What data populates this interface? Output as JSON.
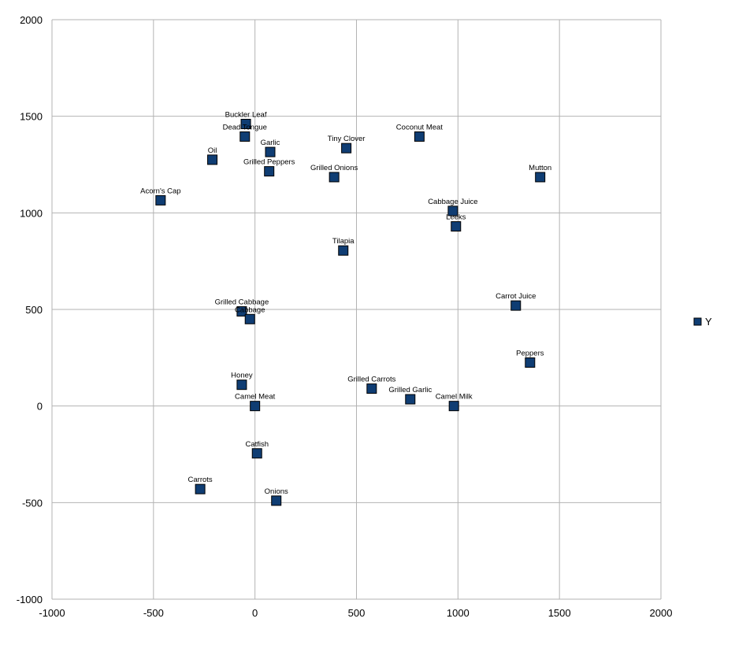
{
  "chart_data": {
    "type": "scatter",
    "title": "",
    "xlabel": "",
    "ylabel": "",
    "xlim": [
      -1000,
      2000
    ],
    "ylim": [
      -1000,
      2000
    ],
    "x_ticks": [
      -1000,
      -500,
      0,
      500,
      1000,
      1500,
      2000
    ],
    "y_ticks": [
      -1000,
      -500,
      0,
      500,
      1000,
      1500,
      2000
    ],
    "x_tick_labels": [
      "-1000",
      "-500",
      "0",
      "500",
      "1000",
      "1500",
      "2000"
    ],
    "y_tick_labels": [
      "-1000",
      "-500",
      "0",
      "500",
      "1000",
      "1500",
      "2000"
    ],
    "grid": true,
    "legend_position": "right",
    "series": [
      {
        "name": "Y",
        "color": "#0f3d73",
        "points": [
          {
            "label": "Buckler Leaf",
            "x": -45,
            "y": 1460
          },
          {
            "label": "Dead Tongue",
            "x": -50,
            "y": 1395
          },
          {
            "label": "Garlic",
            "x": 75,
            "y": 1315
          },
          {
            "label": "Oil",
            "x": -210,
            "y": 1275
          },
          {
            "label": "Grilled Peppers",
            "x": 70,
            "y": 1215
          },
          {
            "label": "Tiny Clover",
            "x": 450,
            "y": 1335
          },
          {
            "label": "Coconut Meat",
            "x": 810,
            "y": 1395
          },
          {
            "label": "Grilled Onions",
            "x": 390,
            "y": 1185
          },
          {
            "label": "Mutton",
            "x": 1405,
            "y": 1185
          },
          {
            "label": "Acorn's Cap",
            "x": -465,
            "y": 1065
          },
          {
            "label": "Cabbage Juice",
            "x": 975,
            "y": 1010
          },
          {
            "label": "Leeks",
            "x": 990,
            "y": 930
          },
          {
            "label": "Tilapia",
            "x": 435,
            "y": 805
          },
          {
            "label": "Carrot Juice",
            "x": 1285,
            "y": 520
          },
          {
            "label": "Grilled Cabbage",
            "x": -65,
            "y": 490
          },
          {
            "label": "Cabbage",
            "x": -25,
            "y": 450
          },
          {
            "label": "Peppers",
            "x": 1355,
            "y": 225
          },
          {
            "label": "Honey",
            "x": -65,
            "y": 110
          },
          {
            "label": "Grilled Carrots",
            "x": 575,
            "y": 90
          },
          {
            "label": "Grilled Garlic",
            "x": 765,
            "y": 35
          },
          {
            "label": "Camel Meat",
            "x": 0,
            "y": 0
          },
          {
            "label": "Camel Milk",
            "x": 980,
            "y": 0
          },
          {
            "label": "Catfish",
            "x": 10,
            "y": -245
          },
          {
            "label": "Carrots",
            "x": -270,
            "y": -430
          },
          {
            "label": "Onions",
            "x": 105,
            "y": -490
          }
        ]
      }
    ]
  }
}
